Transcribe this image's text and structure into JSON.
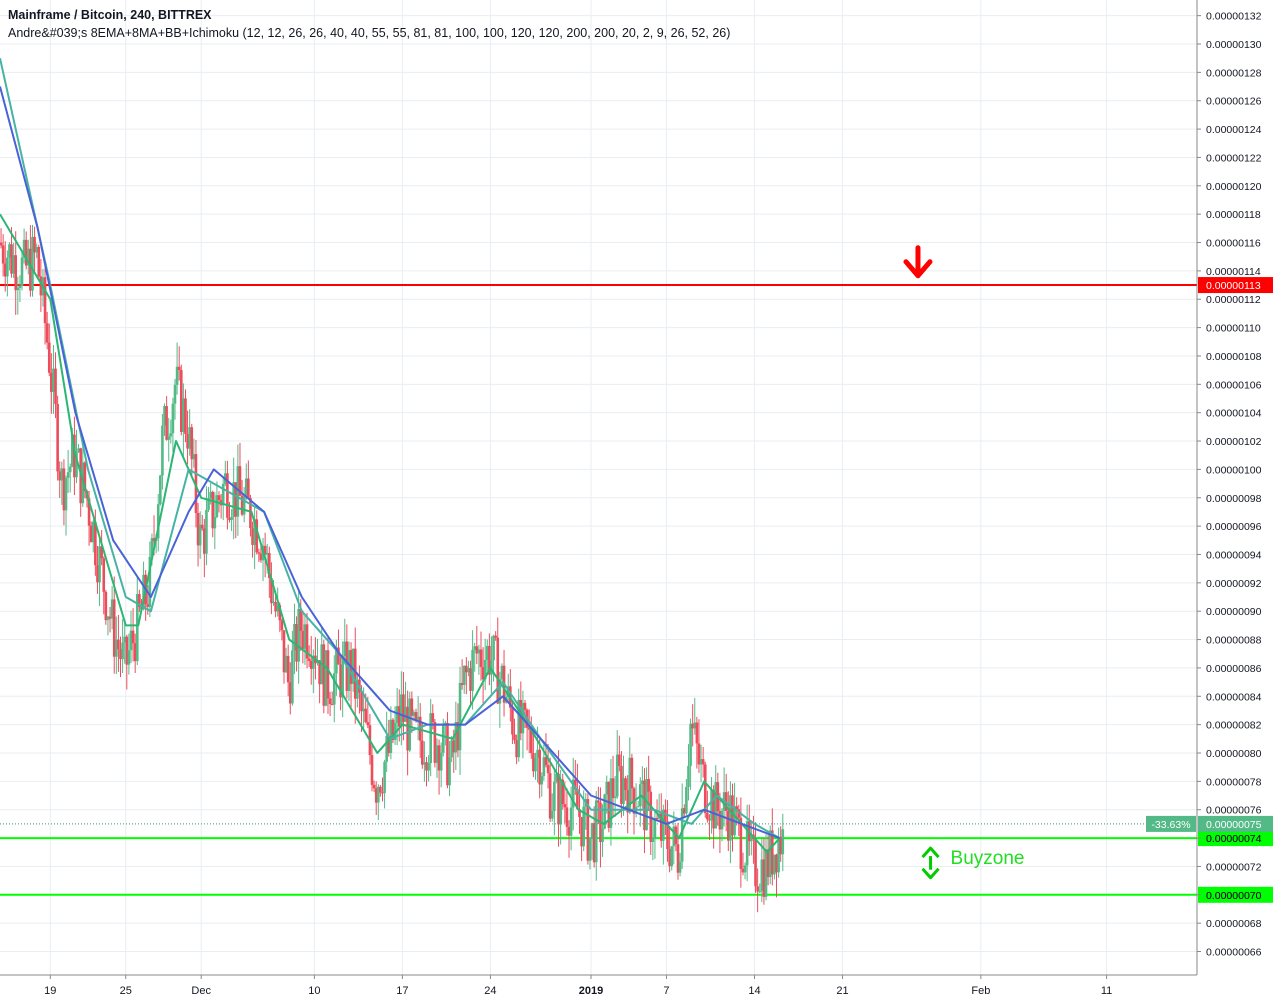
{
  "header": {
    "title": "Mainframe / Bitcoin, 240, BITTREX",
    "indicator": "Andre&#039;s 8EMA+8MA+BB+Ichimoku (12, 12, 26, 26, 40, 40, 55, 55, 81, 81, 100, 100, 120, 120, 200, 200, 20, 2, 9, 26, 52, 26)"
  },
  "colors": {
    "up": "#53b987",
    "down": "#eb4d5c",
    "ema": "#2bb673",
    "ma_teal": "#46b3a4",
    "ma_blue": "#4a62d8",
    "resistance": "#ff0000",
    "support": "#00ff00",
    "grid": "#e9eef3",
    "axis": "#888888",
    "label_text": "#131722"
  },
  "chart_data": {
    "type": "candlestick",
    "symbol": "Mainframe / Bitcoin",
    "interval": "240",
    "exchange": "BITTREX",
    "y_axis": {
      "ylim": [
        6.5e-07,
        1.327e-06
      ],
      "ticks": [
        "0.00000132",
        "0.00000130",
        "0.00000128",
        "0.00000126",
        "0.00000124",
        "0.00000122",
        "0.00000120",
        "0.00000118",
        "0.00000116",
        "0.00000114",
        "0.00000112",
        "0.00000110",
        "0.00000108",
        "0.00000106",
        "0.00000104",
        "0.00000102",
        "0.00000100",
        "0.00000098",
        "0.00000096",
        "0.00000094",
        "0.00000092",
        "0.00000090",
        "0.00000088",
        "0.00000086",
        "0.00000084",
        "0.00000082",
        "0.00000080",
        "0.00000078",
        "0.00000076",
        "0.00000074",
        "0.00000072",
        "0.00000070",
        "0.00000068",
        "0.00000066"
      ]
    },
    "x_axis": {
      "ticks": [
        {
          "label": "19",
          "date": "2018-11-19",
          "bold": false
        },
        {
          "label": "25",
          "date": "2018-11-25",
          "bold": false
        },
        {
          "label": "Dec",
          "date": "2018-12-01",
          "bold": false
        },
        {
          "label": "10",
          "date": "2018-12-10",
          "bold": false
        },
        {
          "label": "17",
          "date": "2018-12-17",
          "bold": false
        },
        {
          "label": "24",
          "date": "2018-12-24",
          "bold": false
        },
        {
          "label": "2019",
          "date": "2019-01-01",
          "bold": true
        },
        {
          "label": "7",
          "date": "2019-01-07",
          "bold": false
        },
        {
          "label": "14",
          "date": "2019-01-14",
          "bold": false
        },
        {
          "label": "21",
          "date": "2019-01-21",
          "bold": false
        },
        {
          "label": "Feb",
          "date": "2019-02-01",
          "bold": false
        },
        {
          "label": "11",
          "date": "2019-02-11",
          "bold": false
        }
      ]
    },
    "price_path": [
      [
        "2018-11-15",
        1.16e-06
      ],
      [
        "2018-11-17",
        1.14e-06
      ],
      [
        "2018-11-18",
        1.15e-06
      ],
      [
        "2018-11-19",
        1.08e-06
      ],
      [
        "2018-11-20",
        9.9e-07
      ],
      [
        "2018-11-21",
        1.01e-06
      ],
      [
        "2018-11-22",
        9.8e-07
      ],
      [
        "2018-11-24",
        8.9e-07
      ],
      [
        "2018-11-25",
        8.6e-07
      ],
      [
        "2018-11-26",
        8.9e-07
      ],
      [
        "2018-11-27",
        9.2e-07
      ],
      [
        "2018-11-28",
        1.02e-06
      ],
      [
        "2018-11-29",
        1.06e-06
      ],
      [
        "2018-11-30",
        1.03e-06
      ],
      [
        "2018-12-01",
        9.5e-07
      ],
      [
        "2018-12-02",
        9.7e-07
      ],
      [
        "2018-12-03",
        9.9e-07
      ],
      [
        "2018-12-05",
        9.7e-07
      ],
      [
        "2018-12-06",
        9.5e-07
      ],
      [
        "2018-12-07",
        9e-07
      ],
      [
        "2018-12-08",
        8.5e-07
      ],
      [
        "2018-12-09",
        8.9e-07
      ],
      [
        "2018-12-10",
        8.8e-07
      ],
      [
        "2018-12-11",
        8.5e-07
      ],
      [
        "2018-12-13",
        8.6e-07
      ],
      [
        "2018-12-14",
        8.2e-07
      ],
      [
        "2018-12-15",
        7.8e-07
      ],
      [
        "2018-12-16",
        8e-07
      ],
      [
        "2018-12-17",
        8.3e-07
      ],
      [
        "2018-12-18",
        8.1e-07
      ],
      [
        "2018-12-20",
        8.1e-07
      ],
      [
        "2018-12-21",
        7.9e-07
      ],
      [
        "2018-12-22",
        8.5e-07
      ],
      [
        "2018-12-23",
        8.7e-07
      ],
      [
        "2018-12-24",
        8.7e-07
      ],
      [
        "2018-12-25",
        8.5e-07
      ],
      [
        "2018-12-26",
        8.2e-07
      ],
      [
        "2018-12-28",
        8e-07
      ],
      [
        "2018-12-29",
        7.7e-07
      ],
      [
        "2018-12-31",
        7.6e-07
      ],
      [
        "2019-01-01",
        7.4e-07
      ],
      [
        "2019-01-02",
        7.5e-07
      ],
      [
        "2019-01-03",
        7.8e-07
      ],
      [
        "2019-01-04",
        7.8e-07
      ],
      [
        "2019-01-05",
        7.7e-07
      ],
      [
        "2019-01-06",
        7.5e-07
      ],
      [
        "2019-01-07",
        7.4e-07
      ],
      [
        "2019-01-08",
        7.3e-07
      ],
      [
        "2019-01-09",
        8.2e-07
      ],
      [
        "2019-01-10",
        7.8e-07
      ],
      [
        "2019-01-11",
        7.6e-07
      ],
      [
        "2019-01-12",
        7.6e-07
      ],
      [
        "2019-01-13",
        7.4e-07
      ],
      [
        "2019-01-14",
        7.2e-07
      ],
      [
        "2019-01-15",
        7.2e-07
      ],
      [
        "2019-01-16",
        7.4e-07
      ]
    ],
    "moving_averages": [
      {
        "color_key": "ema",
        "points": [
          [
            "2018-11-15",
            1.18e-06
          ],
          [
            "2018-11-19",
            1.12e-06
          ],
          [
            "2018-11-21",
            1.01e-06
          ],
          [
            "2018-11-25",
            8.9e-07
          ],
          [
            "2018-11-26",
            8.9e-07
          ],
          [
            "2018-11-29",
            1.02e-06
          ],
          [
            "2018-12-01",
            9.8e-07
          ],
          [
            "2018-12-05",
            9.7e-07
          ],
          [
            "2018-12-08",
            8.8e-07
          ],
          [
            "2018-12-11",
            8.6e-07
          ],
          [
            "2018-12-15",
            8e-07
          ],
          [
            "2018-12-17",
            8.2e-07
          ],
          [
            "2018-12-21",
            8.1e-07
          ],
          [
            "2018-12-24",
            8.6e-07
          ],
          [
            "2018-12-27",
            8.2e-07
          ],
          [
            "2018-12-31",
            7.6e-07
          ],
          [
            "2019-01-02",
            7.5e-07
          ],
          [
            "2019-01-05",
            7.7e-07
          ],
          [
            "2019-01-08",
            7.4e-07
          ],
          [
            "2019-01-10",
            7.8e-07
          ],
          [
            "2019-01-13",
            7.5e-07
          ],
          [
            "2019-01-15",
            7.3e-07
          ],
          [
            "2019-01-16",
            7.4e-07
          ]
        ]
      },
      {
        "color_key": "ma_teal",
        "points": [
          [
            "2018-11-15",
            1.29e-06
          ],
          [
            "2018-11-19",
            1.13e-06
          ],
          [
            "2018-11-22",
            1e-06
          ],
          [
            "2018-11-25",
            9.1e-07
          ],
          [
            "2018-11-27",
            9e-07
          ],
          [
            "2018-11-30",
            1e-06
          ],
          [
            "2018-12-02",
            9.9e-07
          ],
          [
            "2018-12-06",
            9.7e-07
          ],
          [
            "2018-12-09",
            9e-07
          ],
          [
            "2018-12-12",
            8.7e-07
          ],
          [
            "2018-12-16",
            8.1e-07
          ],
          [
            "2018-12-19",
            8.2e-07
          ],
          [
            "2018-12-22",
            8.2e-07
          ],
          [
            "2018-12-25",
            8.5e-07
          ],
          [
            "2018-12-28",
            8.1e-07
          ],
          [
            "2019-01-01",
            7.6e-07
          ],
          [
            "2019-01-04",
            7.6e-07
          ],
          [
            "2019-01-06",
            7.6e-07
          ],
          [
            "2019-01-09",
            7.5e-07
          ],
          [
            "2019-01-11",
            7.7e-07
          ],
          [
            "2019-01-14",
            7.5e-07
          ],
          [
            "2019-01-16",
            7.4e-07
          ]
        ]
      },
      {
        "color_key": "ma_blue",
        "points": [
          [
            "2018-11-15",
            1.27e-06
          ],
          [
            "2018-11-18",
            1.17e-06
          ],
          [
            "2018-11-21",
            1.04e-06
          ],
          [
            "2018-11-24",
            9.5e-07
          ],
          [
            "2018-11-27",
            9.1e-07
          ],
          [
            "2018-11-30",
            9.7e-07
          ],
          [
            "2018-12-02",
            1e-06
          ],
          [
            "2018-12-06",
            9.7e-07
          ],
          [
            "2018-12-09",
            9.1e-07
          ],
          [
            "2018-12-12",
            8.7e-07
          ],
          [
            "2018-12-16",
            8.3e-07
          ],
          [
            "2018-12-19",
            8.2e-07
          ],
          [
            "2018-12-22",
            8.2e-07
          ],
          [
            "2018-12-25",
            8.4e-07
          ],
          [
            "2018-12-28",
            8.1e-07
          ],
          [
            "2019-01-01",
            7.7e-07
          ],
          [
            "2019-01-04",
            7.6e-07
          ],
          [
            "2019-01-07",
            7.5e-07
          ],
          [
            "2019-01-10",
            7.6e-07
          ],
          [
            "2019-01-13",
            7.5e-07
          ],
          [
            "2019-01-16",
            7.4e-07
          ]
        ]
      }
    ],
    "horizontal_lines": [
      {
        "name": "resistance",
        "price": 1.13e-06,
        "label": "0.00000113",
        "color_key": "resistance"
      },
      {
        "name": "support-upper",
        "price": 7.4e-07,
        "label": "0.00000074",
        "color_key": "support"
      },
      {
        "name": "support-lower",
        "price": 7e-07,
        "label": "0.00000070",
        "color_key": "support"
      }
    ],
    "current_price": {
      "price": 7.5e-07,
      "label": "0.00000075",
      "change": "-33.63%"
    },
    "annotations": {
      "down_arrow": {
        "date": "2019-01-27",
        "price": 1.145e-06
      },
      "buyzone": {
        "text": "Buyzone",
        "date": "2019-01-28",
        "from": 7.4e-07,
        "to": 7.05e-07
      }
    }
  }
}
